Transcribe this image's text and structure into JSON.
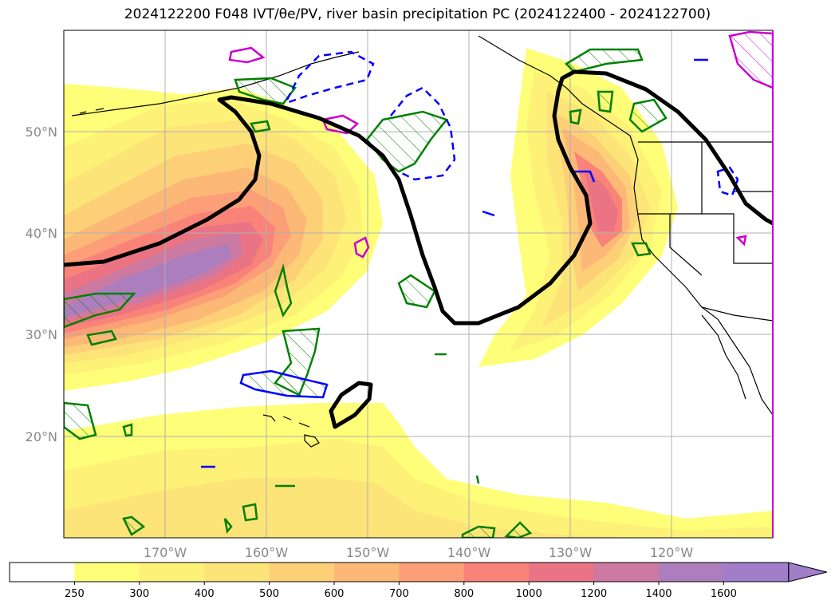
{
  "figure": {
    "title": "2024122200 F048 IVT/θe/PV, river basin precipitation PC (2024122400 - 2024122700)"
  },
  "axes": {
    "lon_ticks": [
      "170°W",
      "160°W",
      "150°W",
      "140°W",
      "130°W",
      "120°W"
    ],
    "lat_ticks": [
      "50°N",
      "40°N",
      "30°N",
      "20°N"
    ],
    "lon_range": [
      -180,
      -110
    ],
    "lat_range": [
      10,
      60
    ],
    "grid": true
  },
  "colorbar": {
    "levels": [
      "250",
      "300",
      "400",
      "500",
      "600",
      "700",
      "800",
      "1000",
      "1200",
      "1400",
      "1600"
    ],
    "colors": [
      "#ffffff",
      "#fefe78",
      "#fdf177",
      "#fde478",
      "#fdd078",
      "#fcb876",
      "#fc9e77",
      "#f98379",
      "#ea7484",
      "#cd7aa2",
      "#ad7ebd",
      "#a07ec9"
    ],
    "extend": "max"
  },
  "colors": {
    "theta_contour": "#000000",
    "pv_contour": "#008000",
    "neg_pv_contour": "#0000ff",
    "precip_contour": "#cc00cc",
    "grid": "#b0b0b0",
    "coast": "#000000"
  }
}
